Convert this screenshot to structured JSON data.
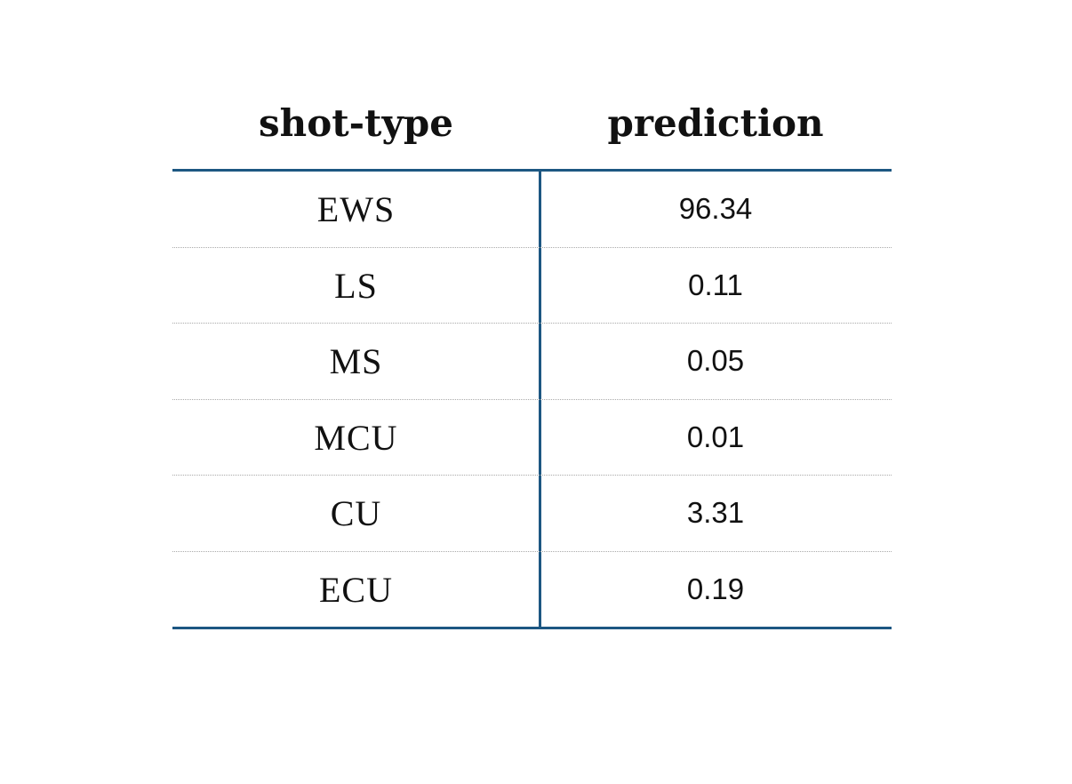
{
  "table": {
    "headers": [
      "shot-type",
      "prediction"
    ],
    "rows": [
      [
        "EWS",
        96.34
      ],
      [
        "LS",
        0.11
      ],
      [
        "MS",
        0.05
      ],
      [
        "MCU",
        0.01
      ],
      [
        "CU",
        3.31
      ],
      [
        "ECU",
        0.19
      ]
    ]
  }
}
